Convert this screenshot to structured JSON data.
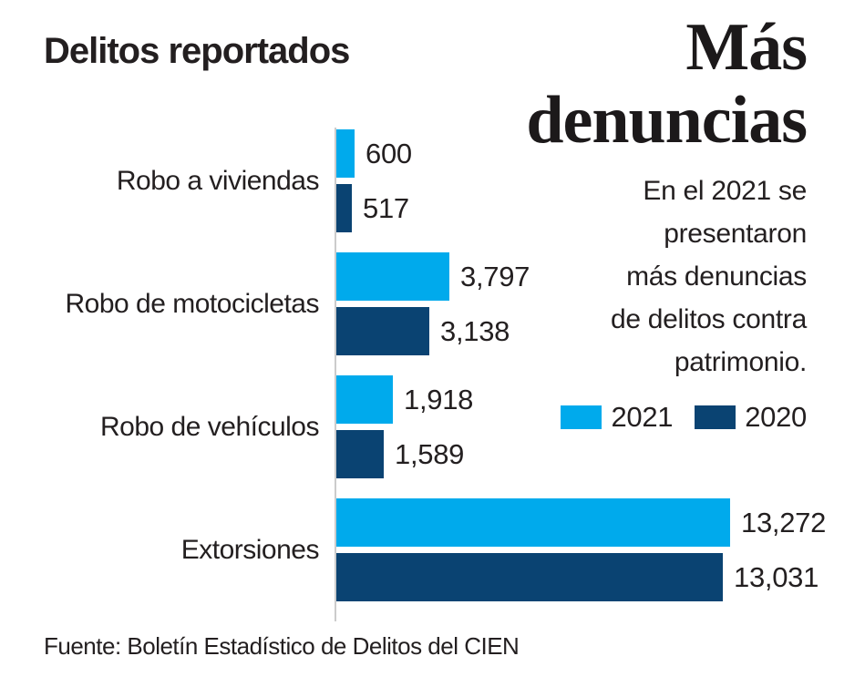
{
  "header": {
    "title": "Delitos reportados",
    "headline": "Más denuncias",
    "description": "En el 2021 se presentaron más denuncias de delitos contra patrimonio.",
    "description_lines": [
      "En el 2021 se",
      "presentaron",
      "más denuncias",
      "de delitos contra",
      "patrimonio."
    ]
  },
  "footer": {
    "source": "Fuente: Boletín Estadístico de Delitos del CIEN"
  },
  "colors": {
    "series_2021": "#00aaec",
    "series_2020": "#0a4372",
    "text": "#231f20",
    "axis": "#cccccc"
  },
  "chart_data": {
    "type": "bar",
    "orientation": "horizontal",
    "title": "Delitos reportados",
    "xlabel": "",
    "ylabel": "",
    "xlim": [
      0,
      13272
    ],
    "grid": false,
    "legend_position": "right-middle",
    "categories": [
      "Robo a viviendas",
      "Robo de motocicletas",
      "Robo de vehículos",
      "Extorsiones"
    ],
    "series": [
      {
        "name": "2021",
        "color": "#00aaec",
        "values": [
          600,
          3797,
          1918,
          13272
        ],
        "value_labels": [
          "600",
          "3,797",
          "1,918",
          "13,272"
        ]
      },
      {
        "name": "2020",
        "color": "#0a4372",
        "values": [
          517,
          3138,
          1589,
          13031
        ],
        "value_labels": [
          "517",
          "3,138",
          "1,589",
          "13,031"
        ]
      }
    ]
  }
}
